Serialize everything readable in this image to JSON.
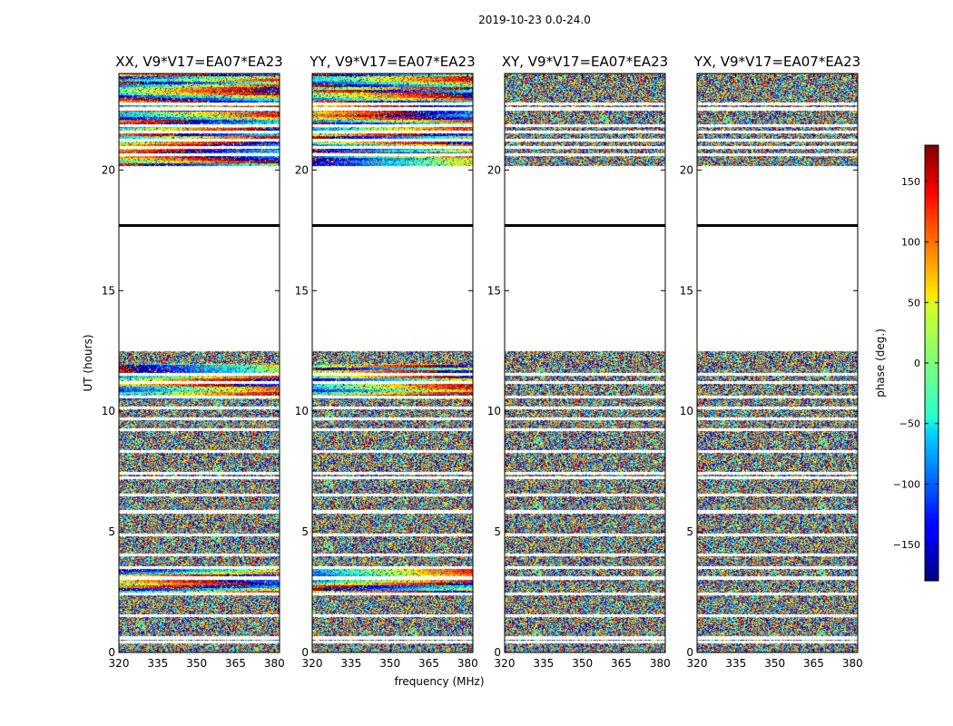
{
  "figure": {
    "suptitle": "2019-10-23 0.0-24.0",
    "xlabel": "frequency (MHz)",
    "ylabel": "UT (hours)"
  },
  "chart_data": {
    "type": "heatmap",
    "x_range": [
      320,
      382
    ],
    "y_range": [
      0,
      24
    ],
    "xticks": [
      320,
      335,
      350,
      365,
      380
    ],
    "yticks": [
      0,
      5,
      10,
      15,
      20
    ],
    "panels": [
      {
        "title": "XX, V9*V17=EA07*EA23",
        "noise_level": 1.0,
        "coherence": 0.75
      },
      {
        "title": "YY, V9*V17=EA07*EA23",
        "noise_level": 1.0,
        "coherence": 0.75
      },
      {
        "title": "XY, V9*V17=EA07*EA23",
        "noise_level": 1.0,
        "coherence": 0.0
      },
      {
        "title": "YX, V9*V17=EA07*EA23",
        "noise_level": 1.0,
        "coherence": 0.0
      }
    ],
    "data_gap_hours": [
      [
        12.5,
        20.2
      ]
    ],
    "flag_line_hour": 17.7,
    "flagged_rows_hours": [
      0.45,
      0.62,
      1.55,
      2.45,
      3.1,
      3.55,
      4.05,
      4.9,
      5.85,
      6.55,
      7.25,
      7.45,
      8.35,
      9.25,
      9.7,
      10.15,
      10.6,
      11.2,
      11.55,
      20.65,
      20.95,
      21.25,
      21.6,
      21.85,
      22.55,
      22.75
    ],
    "colorbar": {
      "label": "phase (deg.)",
      "range": [
        -180,
        180
      ],
      "ticks": [
        -150,
        -100,
        -50,
        0,
        50,
        100,
        150
      ],
      "tick_labels": [
        "−150",
        "−100",
        "−50",
        "0",
        "50",
        "100",
        "150"
      ]
    }
  }
}
